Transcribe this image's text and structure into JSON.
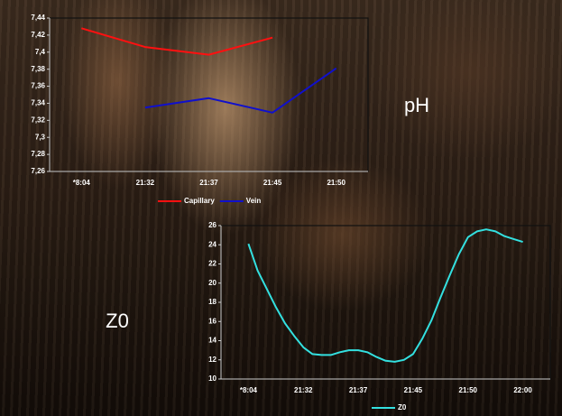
{
  "chart_data": [
    {
      "type": "line",
      "categories": [
        "*8:04",
        "21:32",
        "21:37",
        "21:45",
        "21:50"
      ],
      "series": [
        {
          "name": "Capillary",
          "color": "#ff1010",
          "values": [
            7.428,
            7.406,
            7.397,
            7.417,
            null
          ]
        },
        {
          "name": "Vein",
          "color": "#1010cc",
          "values": [
            null,
            7.335,
            7.346,
            7.329,
            7.381
          ]
        }
      ],
      "ylim": [
        7.26,
        7.44
      ],
      "yticks": [
        {
          "value": 7.26,
          "label": "7,26"
        },
        {
          "value": 7.28,
          "label": "7,28"
        },
        {
          "value": 7.3,
          "label": "7,3"
        },
        {
          "value": 7.32,
          "label": "7,32"
        },
        {
          "value": 7.34,
          "label": "7,34"
        },
        {
          "value": 7.36,
          "label": "7,36"
        },
        {
          "value": 7.38,
          "label": "7,38"
        },
        {
          "value": 7.4,
          "label": "7,4"
        },
        {
          "value": 7.42,
          "label": "7,42"
        },
        {
          "value": 7.44,
          "label": "7,44"
        }
      ],
      "annotation": "pH"
    },
    {
      "type": "line",
      "categories": [
        "*8:04",
        null,
        null,
        null,
        null,
        null,
        "21:32",
        null,
        null,
        null,
        null,
        null,
        "21:37",
        null,
        null,
        null,
        null,
        null,
        "21:45",
        null,
        null,
        null,
        null,
        null,
        "21:50",
        null,
        null,
        null,
        null,
        null,
        "22:00"
      ],
      "series": [
        {
          "name": "Z0",
          "color": "#33e0e0",
          "values": [
            24.1,
            21.3,
            19.4,
            17.5,
            15.8,
            14.5,
            13.3,
            12.6,
            12.5,
            12.5,
            12.8,
            13,
            13,
            12.8,
            12.3,
            11.9,
            11.8,
            12,
            12.6,
            14.2,
            16.1,
            18.5,
            20.8,
            23,
            24.8,
            25.4,
            25.6,
            25.4,
            24.9,
            24.6,
            24.3
          ]
        }
      ],
      "ylim": [
        10,
        26
      ],
      "yticks": [
        10,
        12,
        14,
        16,
        18,
        20,
        22,
        24,
        26
      ],
      "annotation": "Z0"
    }
  ]
}
